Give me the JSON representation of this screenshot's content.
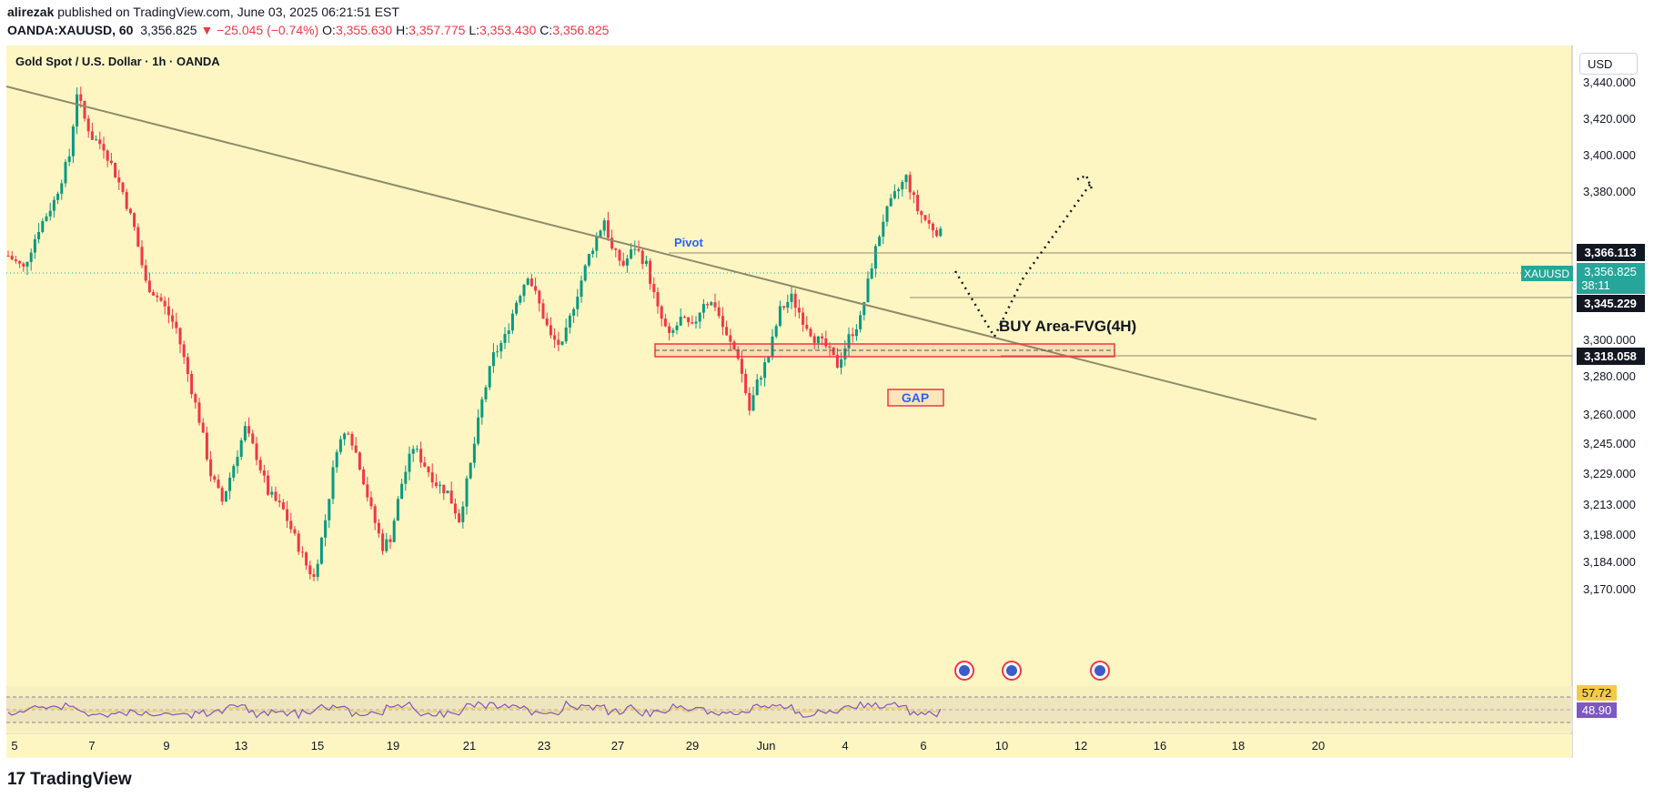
{
  "header": {
    "author": "alirezak",
    "published": "published on TradingView.com, June 03, 2025 06:21:51 EST",
    "symbol": "OANDA:XAUUSD, 60",
    "last": "3,356.825",
    "change": "▼ −25.045 (−0.74%)",
    "o_label": "O:",
    "o": "3,355.630",
    "h_label": "H:",
    "h": "3,357.775",
    "l_label": "L:",
    "l": "3,353.430",
    "c_label": "C:",
    "c": "3,356.825"
  },
  "chart_title": "Gold Spot / U.S. Dollar · 1h · OANDA",
  "currency": "USD",
  "footer": {
    "brand": "TradingView"
  },
  "colors": {
    "background": "#fdf6c3",
    "up": "#089981",
    "down": "#f23645",
    "trendline": "#8f8a6b",
    "rsi": "#7e57c2",
    "rsi_ma": "#f7c948",
    "price_tag": "#26a69a"
  },
  "chart_data": {
    "type": "candlestick",
    "title": "Gold Spot / U.S. Dollar · 1h · OANDA",
    "y_ticks": [
      "3,440.000",
      "3,420.000",
      "3,400.000",
      "3,380.000",
      "3,300.000",
      "3,280.000",
      "3,260.000",
      "3,245.000",
      "3,229.000",
      "3,213.000",
      "3,198.000",
      "3,184.000",
      "3,170.000"
    ],
    "x_ticks": [
      "5",
      "7",
      "9",
      "13",
      "15",
      "19",
      "21",
      "23",
      "27",
      "29",
      "Jun",
      "4",
      "6",
      "10",
      "12",
      "16",
      "18",
      "20"
    ],
    "price_labels": [
      {
        "value": "3,366.113"
      },
      {
        "value": "3,356.825",
        "tag": "XAUUSD",
        "countdown": "38:11"
      },
      {
        "value": "3,345.229"
      },
      {
        "value": "3,318.058"
      }
    ],
    "annotations": {
      "pivot": "Pivot",
      "buy_area": "BUY Area-FVG(4H)",
      "gap": "GAP"
    },
    "rsi": {
      "value1": "57.72",
      "value2": "48.90"
    },
    "path_points": [
      [
        0,
        3345
      ],
      [
        4,
        3338
      ],
      [
        8,
        3360
      ],
      [
        12,
        3375
      ],
      [
        16,
        3400
      ],
      [
        18,
        3435
      ],
      [
        20,
        3420
      ],
      [
        22,
        3410
      ],
      [
        25,
        3405
      ],
      [
        27,
        3395
      ],
      [
        30,
        3380
      ],
      [
        33,
        3360
      ],
      [
        36,
        3330
      ],
      [
        40,
        3320
      ],
      [
        44,
        3305
      ],
      [
        47,
        3280
      ],
      [
        50,
        3255
      ],
      [
        53,
        3225
      ],
      [
        56,
        3210
      ],
      [
        59,
        3230
      ],
      [
        62,
        3250
      ],
      [
        65,
        3235
      ],
      [
        68,
        3215
      ],
      [
        72,
        3205
      ],
      [
        75,
        3190
      ],
      [
        78,
        3175
      ],
      [
        80,
        3168
      ],
      [
        83,
        3200
      ],
      [
        86,
        3240
      ],
      [
        89,
        3250
      ],
      [
        92,
        3230
      ],
      [
        95,
        3205
      ],
      [
        98,
        3185
      ],
      [
        100,
        3190
      ],
      [
        103,
        3220
      ],
      [
        106,
        3240
      ],
      [
        109,
        3230
      ],
      [
        112,
        3220
      ],
      [
        115,
        3215
      ],
      [
        118,
        3200
      ],
      [
        121,
        3230
      ],
      [
        124,
        3265
      ],
      [
        127,
        3290
      ],
      [
        130,
        3300
      ],
      [
        133,
        3320
      ],
      [
        136,
        3335
      ],
      [
        139,
        3318
      ],
      [
        142,
        3300
      ],
      [
        145,
        3295
      ],
      [
        148,
        3318
      ],
      [
        152,
        3345
      ],
      [
        156,
        3365
      ],
      [
        158,
        3348
      ],
      [
        161,
        3340
      ],
      [
        164,
        3350
      ],
      [
        167,
        3340
      ],
      [
        170,
        3315
      ],
      [
        173,
        3300
      ],
      [
        176,
        3310
      ],
      [
        179,
        3305
      ],
      [
        182,
        3320
      ],
      [
        185,
        3318
      ],
      [
        188,
        3300
      ],
      [
        191,
        3290
      ],
      [
        194,
        3260
      ],
      [
        196,
        3275
      ],
      [
        199,
        3290
      ],
      [
        202,
        3315
      ],
      [
        205,
        3322
      ],
      [
        208,
        3310
      ],
      [
        211,
        3300
      ],
      [
        214,
        3295
      ],
      [
        217,
        3285
      ],
      [
        220,
        3300
      ],
      [
        223,
        3310
      ],
      [
        226,
        3340
      ],
      [
        229,
        3365
      ],
      [
        232,
        3378
      ],
      [
        235,
        3388
      ],
      [
        238,
        3370
      ],
      [
        241,
        3362
      ],
      [
        244,
        3357
      ]
    ]
  }
}
